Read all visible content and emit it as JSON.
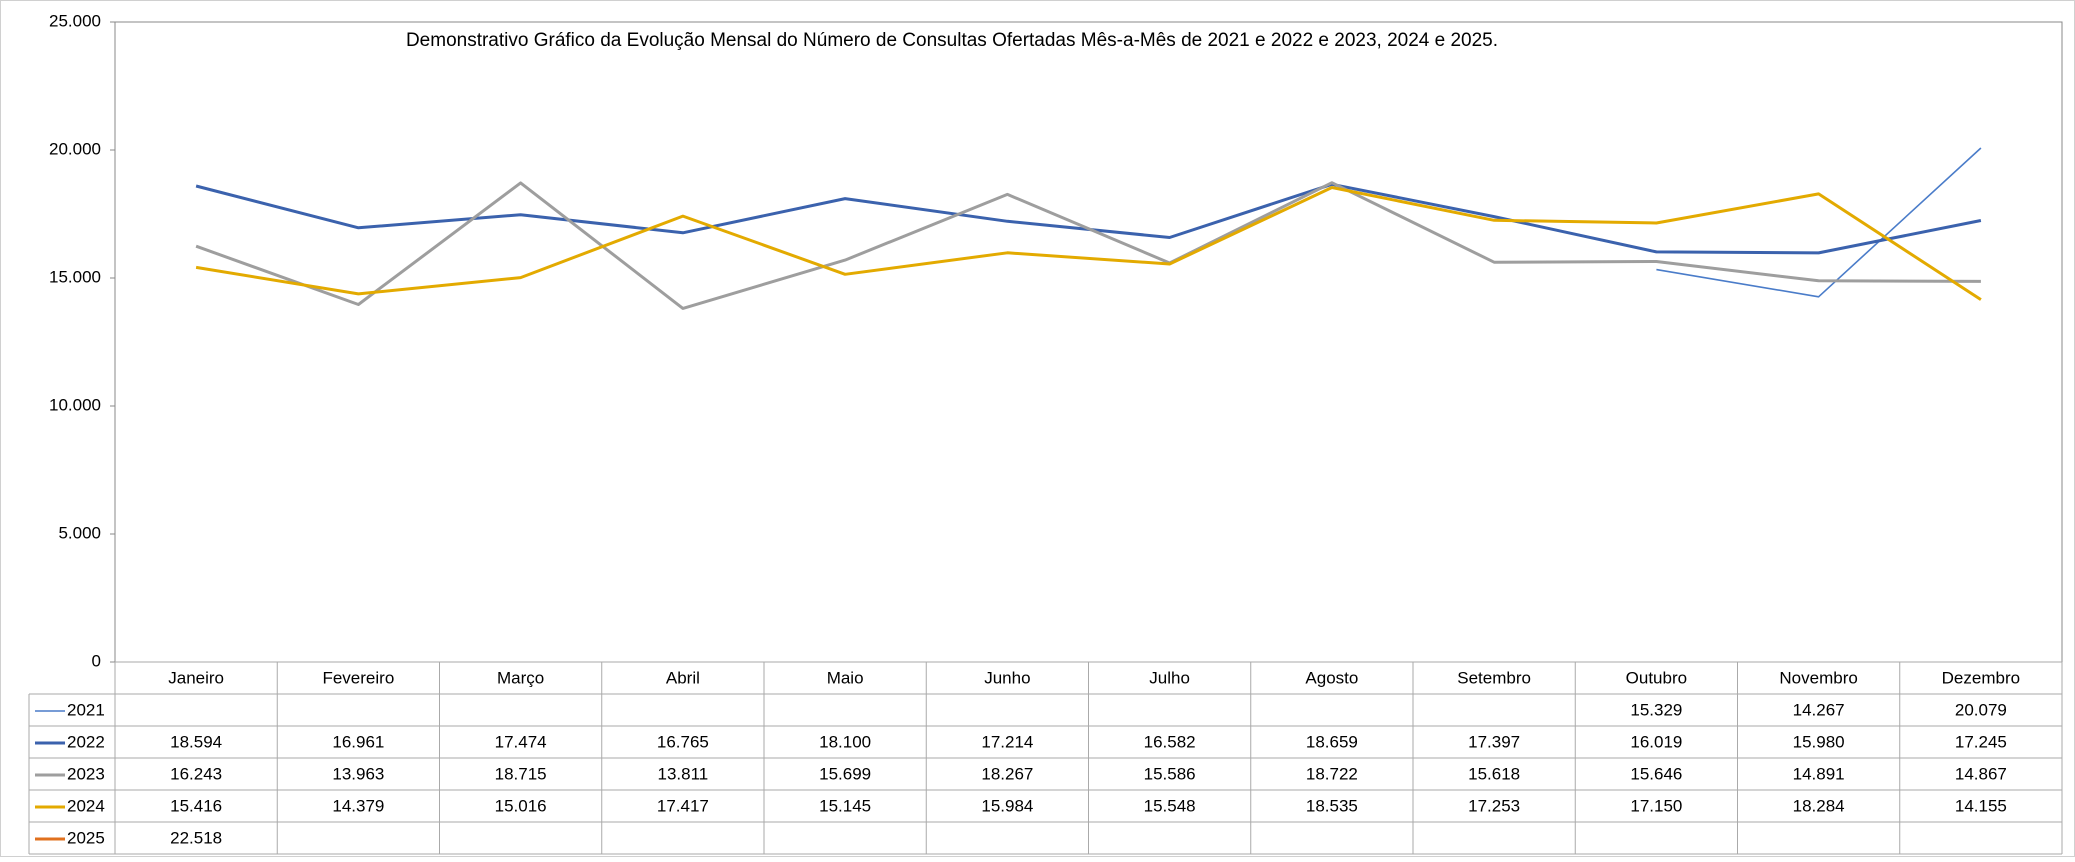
{
  "chart_data": {
    "type": "line",
    "title": "Demonstrativo Gráfico da Evolução Mensal do Número de Consultas Ofertadas Mês-a-Mês de 2021 e 2022 e 2023, 2024 e 2025.",
    "categories": [
      "Janeiro",
      "Fevereiro",
      "Março",
      "Abril",
      "Maio",
      "Junho",
      "Julho",
      "Agosto",
      "Setembro",
      "Outubro",
      "Novembro",
      "Dezembro"
    ],
    "ylim": [
      0,
      25000
    ],
    "yticks": [
      0,
      {
        "value": 5000,
        "label": "5.000"
      },
      {
        "value": 10000,
        "label": "10.000"
      },
      {
        "value": 15000,
        "label": "15.000"
      },
      {
        "value": 20000,
        "label": "20.000"
      },
      {
        "value": 25000,
        "label": "25.000"
      }
    ],
    "series": [
      {
        "name": "2021",
        "color": "#4a7cc9",
        "values": [
          null,
          null,
          null,
          null,
          null,
          null,
          null,
          null,
          null,
          15329,
          14267,
          20079
        ],
        "value_labels": [
          null,
          null,
          null,
          null,
          null,
          null,
          null,
          null,
          null,
          "15.329",
          "14.267",
          "20.079"
        ]
      },
      {
        "name": "2022",
        "color": "#3b62ad",
        "values": [
          18594,
          16961,
          17474,
          16765,
          18100,
          17214,
          16582,
          18659,
          17397,
          16019,
          15980,
          17245
        ],
        "value_labels": [
          "18.594",
          "16.961",
          "17.474",
          "16.765",
          "18.100",
          "17.214",
          "16.582",
          "18.659",
          "17.397",
          "16.019",
          "15.980",
          "17.245"
        ]
      },
      {
        "name": "2023",
        "color": "#9e9e9e",
        "values": [
          16243,
          13963,
          18715,
          13811,
          15699,
          18267,
          15586,
          18722,
          15618,
          15646,
          14891,
          14867
        ],
        "value_labels": [
          "16.243",
          "13.963",
          "18.715",
          "13.811",
          "15.699",
          "18.267",
          "15.586",
          "18.722",
          "15.618",
          "15.646",
          "14.891",
          "14.867"
        ]
      },
      {
        "name": "2024",
        "color": "#e3aa00",
        "values": [
          15416,
          14379,
          15016,
          17417,
          15145,
          15984,
          15548,
          18535,
          17253,
          17150,
          18284,
          14155
        ],
        "value_labels": [
          "15.416",
          "14.379",
          "15.016",
          "17.417",
          "15.145",
          "15.984",
          "15.548",
          "18.535",
          "17.253",
          "17.150",
          "18.284",
          "14.155"
        ]
      },
      {
        "name": "2025",
        "color": "#e0701e",
        "values": [
          22518,
          null,
          null,
          null,
          null,
          null,
          null,
          null,
          null,
          null,
          null,
          null
        ],
        "value_labels": [
          "22.518",
          null,
          null,
          null,
          null,
          null,
          null,
          null,
          null,
          null,
          null,
          null
        ]
      }
    ]
  }
}
